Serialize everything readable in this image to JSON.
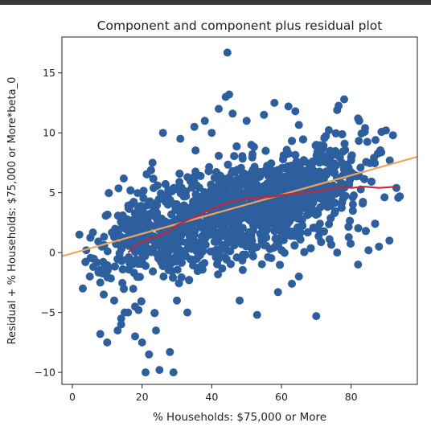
{
  "chart_data": {
    "type": "scatter",
    "title": "Component and component plus residual plot",
    "xlabel": "% Households: $75,000 or More",
    "ylabel": "Residual + % Households: $75,000 or More*beta_0",
    "xlim": [
      -3,
      99
    ],
    "ylim": [
      -11,
      18
    ],
    "xticks": [
      0,
      20,
      40,
      60,
      80
    ],
    "yticks": [
      -10,
      -5,
      0,
      5,
      10,
      15
    ],
    "grid": false,
    "colors": {
      "points": "#2d5e9e",
      "fit_line": "#f0a45a",
      "lowess": "#c0283a"
    },
    "fit_line": {
      "name": "",
      "x": [
        -3,
        99
      ],
      "y": [
        -0.3,
        8.0
      ]
    },
    "lowess": {
      "name": "",
      "x": [
        16,
        18,
        20,
        22,
        25,
        28,
        30,
        33,
        36,
        38,
        40,
        42,
        45,
        48,
        50,
        53,
        55,
        58,
        60,
        63,
        66,
        70,
        74,
        77,
        80,
        84,
        88,
        93
      ],
      "y": [
        0.0,
        0.6,
        0.9,
        1.1,
        1.4,
        1.8,
        2.3,
        2.7,
        3.1,
        3.4,
        3.6,
        3.9,
        4.2,
        4.4,
        4.5,
        4.6,
        4.6,
        4.7,
        4.8,
        4.9,
        5.0,
        5.1,
        5.3,
        5.5,
        5.4,
        5.5,
        5.4,
        5.5
      ]
    },
    "points": {
      "name": "",
      "x": [
        44.5,
        45,
        44,
        42,
        46,
        38,
        55,
        62,
        64,
        76,
        78,
        82,
        84,
        90,
        92,
        87,
        93,
        94,
        2,
        4,
        6,
        5,
        3,
        9,
        12,
        14,
        16,
        14,
        13,
        18,
        15,
        8,
        10,
        20,
        21,
        25,
        29,
        22,
        24,
        18,
        19,
        28,
        30,
        33,
        48,
        53,
        59,
        63,
        65,
        70,
        76,
        82,
        85,
        88,
        91,
        58,
        50,
        35,
        26,
        23,
        31,
        40,
        70,
        74,
        80,
        6,
        8
      ],
      "y": [
        16.7,
        13.2,
        13.0,
        12.0,
        11.6,
        11.0,
        11.5,
        12.2,
        11.8,
        11.9,
        12.8,
        11.2,
        10.4,
        10.2,
        9.8,
        9.4,
        5.4,
        4.7,
        1.5,
        0.2,
        -0.5,
        -2.0,
        -3.0,
        -3.5,
        -4.0,
        -5.5,
        -5.0,
        -6.0,
        -6.5,
        -7.0,
        -5.0,
        -6.8,
        -7.5,
        -7.5,
        -10.0,
        -9.8,
        -10.0,
        -8.5,
        -6.5,
        -4.5,
        -4.8,
        -8.3,
        -4.0,
        -5.0,
        -4.0,
        -5.2,
        -3.3,
        -2.6,
        -2.0,
        -5.3,
        0.0,
        -1.0,
        0.2,
        0.5,
        1.0,
        12.5,
        11.0,
        10.5,
        10.0,
        7.5,
        9.5,
        10.0,
        9.0,
        8.5,
        8.0,
        -1.2,
        -2.5
      ]
    }
  }
}
